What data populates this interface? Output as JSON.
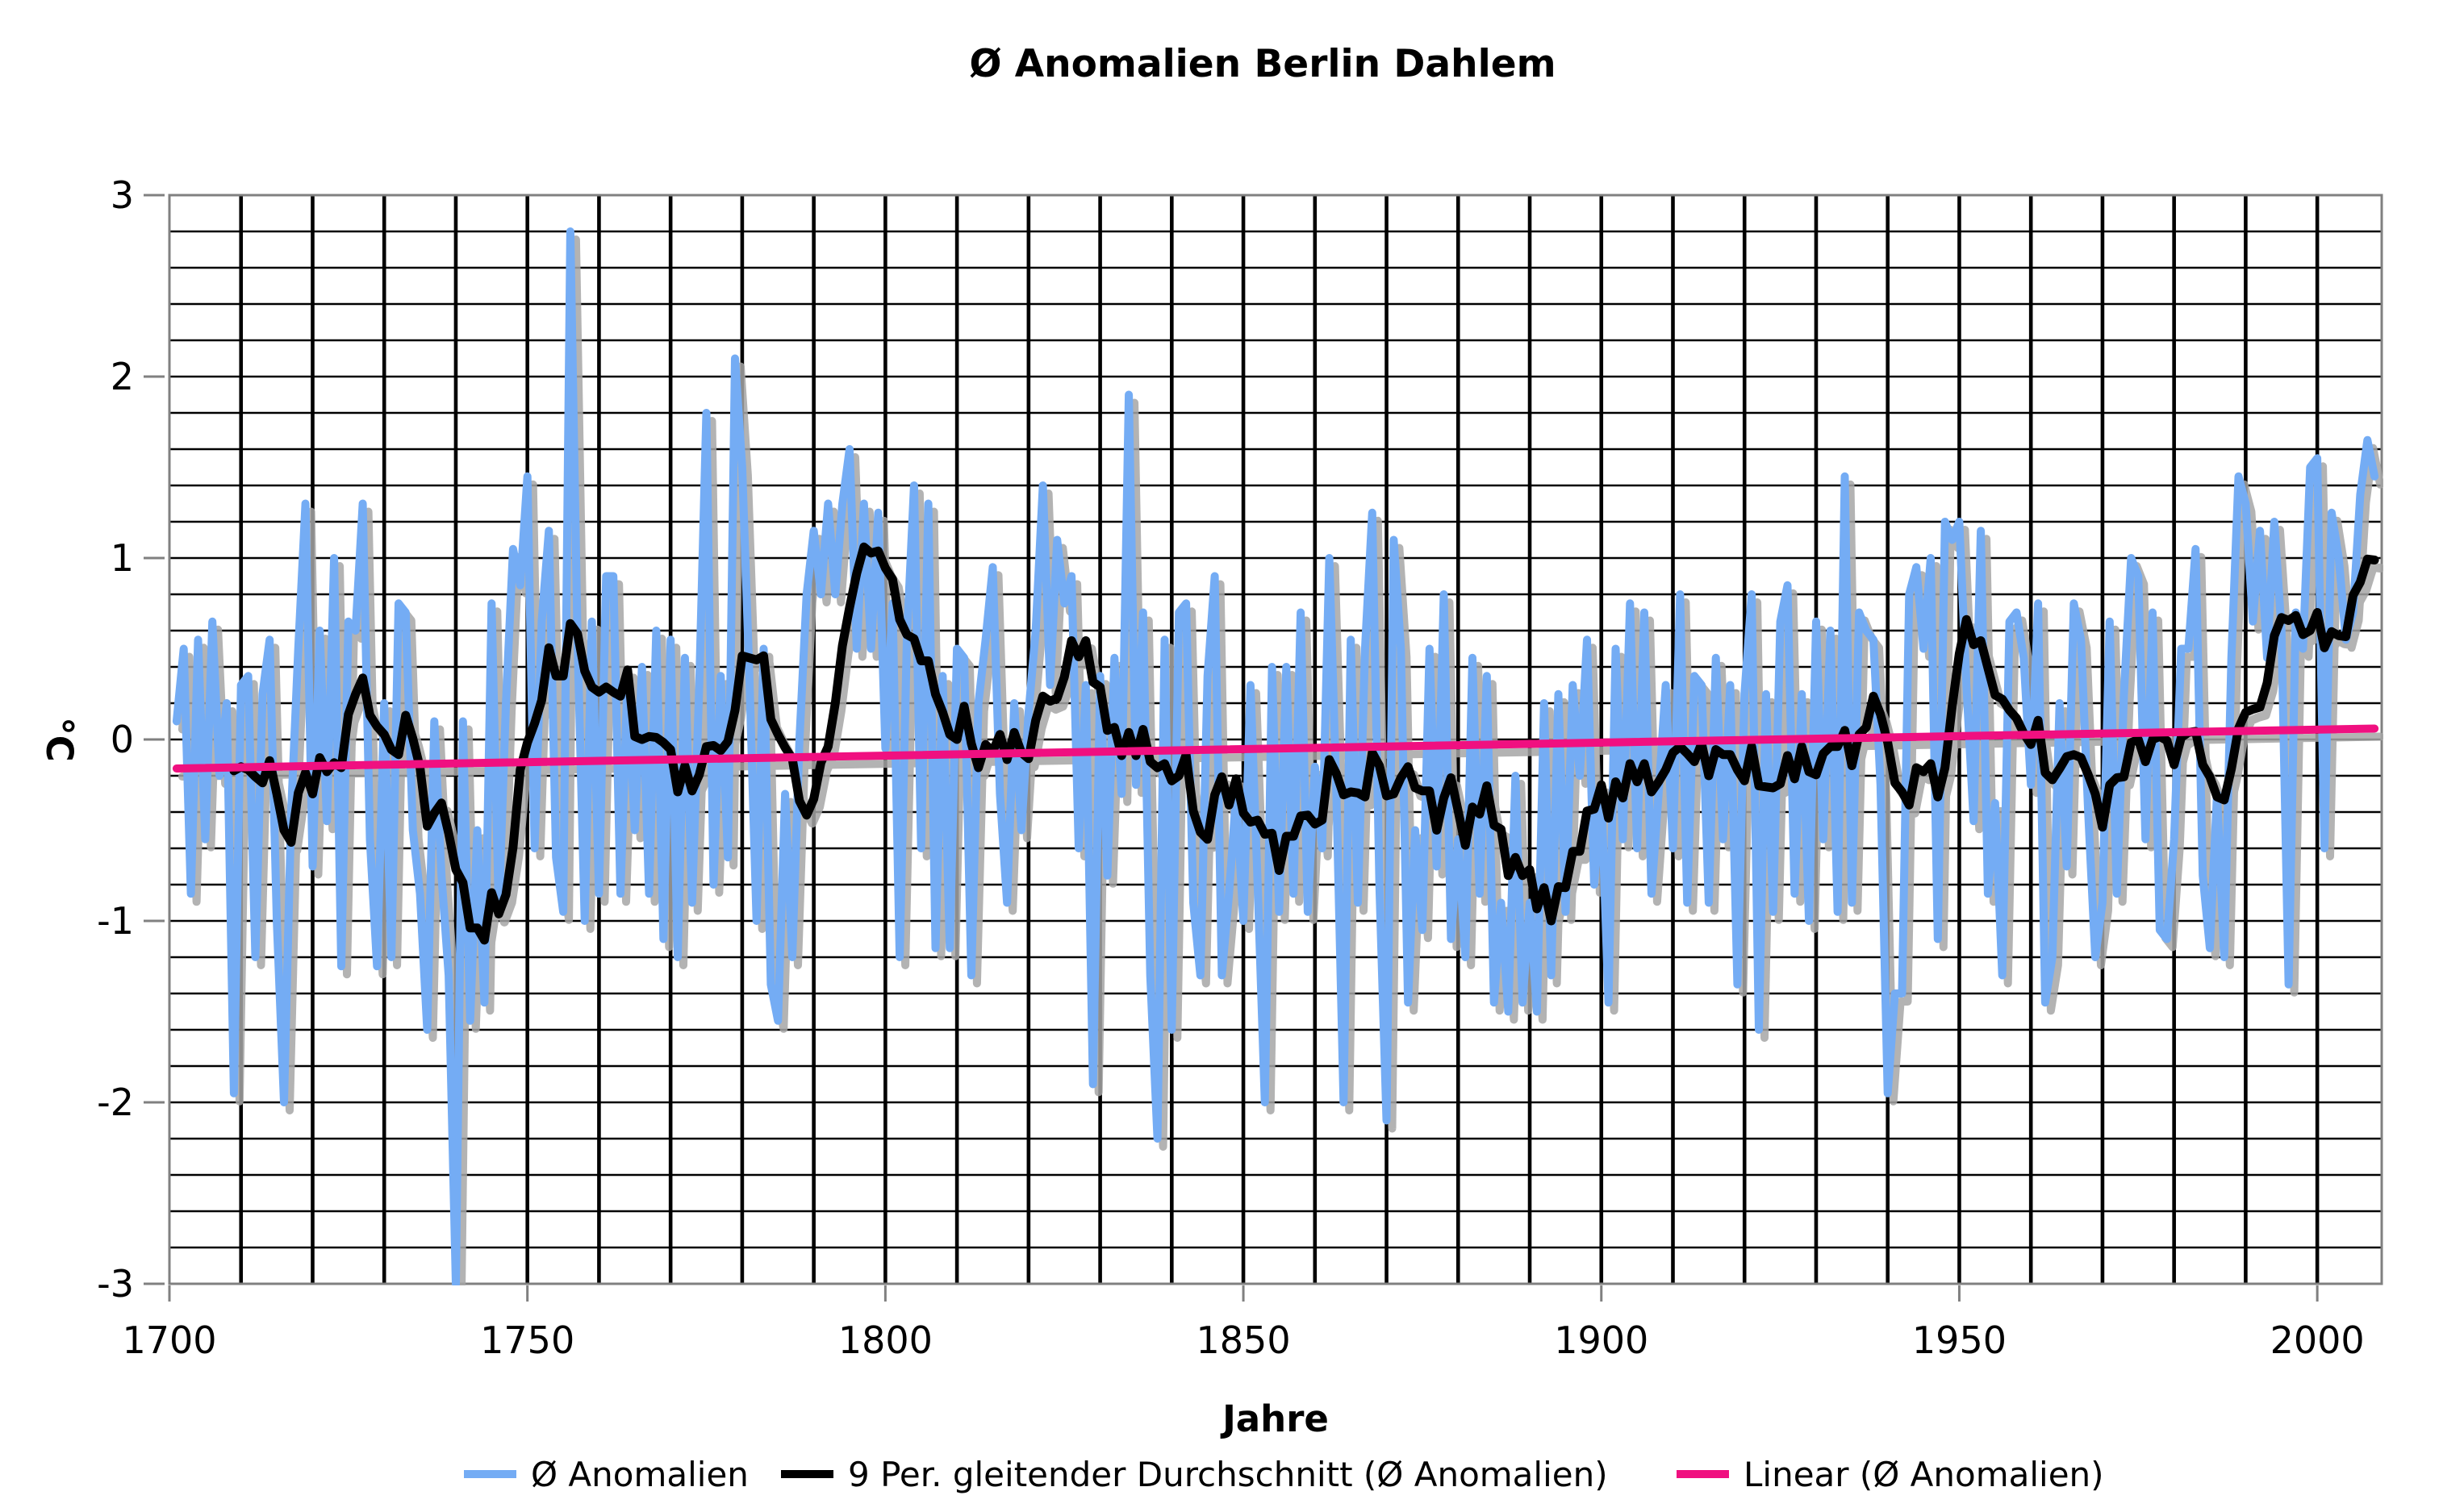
{
  "title": "Ø Anomalien Berlin Dahlem",
  "y_axis": {
    "title": "°C",
    "tick_labels": [
      "3",
      "2",
      "1",
      "0",
      "-1",
      "-2",
      "-3"
    ],
    "tick_values": [
      3,
      2,
      1,
      0,
      -1,
      -2,
      -3
    ],
    "min": -3,
    "max": 3,
    "minor_step": 0.2
  },
  "x_axis": {
    "title": "Jahre",
    "tick_labels": [
      "1700",
      "1750",
      "1800",
      "1850",
      "1900",
      "1950",
      "2000"
    ],
    "tick_values": [
      1700,
      1750,
      1800,
      1850,
      1900,
      1950,
      2000
    ],
    "minor_step": 10
  },
  "legend": [
    {
      "label": "Ø Anomalien",
      "color": "#74ACF4"
    },
    {
      "label": "9 Per. gleitender Durchschnitt (Ø Anomalien)",
      "color": "#000000"
    },
    {
      "label": "Linear (Ø Anomalien)",
      "color": "#F01080"
    }
  ],
  "chart_data": {
    "type": "line",
    "title": "Ø Anomalien Berlin Dahlem",
    "xlabel": "Jahre",
    "ylabel": "°C",
    "xlim": [
      1700,
      2009
    ],
    "ylim": [
      -3,
      3
    ],
    "grid": "both",
    "legend_position": "bottom",
    "start_year": 1701,
    "end_year": 2008,
    "series": [
      {
        "name": "Ø Anomalien",
        "color": "#74ACF4",
        "kind": "yearly_values",
        "values": [
          0.1,
          0.5,
          -0.85,
          0.55,
          -0.55,
          0.65,
          -0.2,
          0.2,
          -1.95,
          0.3,
          0.35,
          -1.2,
          0.25,
          0.55,
          -1.0,
          -2.0,
          -0.4,
          0.5,
          1.3,
          -0.7,
          0.6,
          -0.45,
          1.0,
          -1.25,
          0.65,
          0.6,
          1.3,
          -0.55,
          -1.25,
          0.2,
          -1.2,
          0.75,
          0.7,
          -0.5,
          -0.85,
          -1.6,
          0.1,
          -0.75,
          -1.3,
          -3.0,
          0.1,
          -1.55,
          -0.5,
          -1.45,
          0.75,
          -0.95,
          0.2,
          1.05,
          0.85,
          1.45,
          -0.6,
          0.65,
          1.15,
          -0.65,
          -0.95,
          2.8,
          0.55,
          -1.0,
          0.65,
          -0.85,
          0.9,
          0.9,
          -0.85,
          0.35,
          -0.5,
          0.4,
          -0.85,
          0.6,
          -1.1,
          0.55,
          -1.2,
          0.45,
          -0.9,
          0.3,
          1.8,
          -0.8,
          0.35,
          -0.65,
          2.1,
          1.5,
          0.35,
          -1.0,
          0.5,
          -1.35,
          -1.55,
          -0.3,
          -1.2,
          0.0,
          0.8,
          1.15,
          0.8,
          1.3,
          0.8,
          1.3,
          1.6,
          0.5,
          1.3,
          0.5,
          1.25,
          -0.05,
          0.75,
          -1.2,
          0.55,
          1.4,
          -0.6,
          1.3,
          -1.15,
          0.35,
          -1.15,
          0.5,
          0.45,
          -1.3,
          0.2,
          0.55,
          0.95,
          -0.3,
          -0.9,
          0.2,
          -0.5,
          0.15,
          0.6,
          1.4,
          0.3,
          1.1,
          0.75,
          0.9,
          -0.6,
          0.3,
          -1.9,
          0.35,
          -0.75,
          0.45,
          -0.3,
          1.9,
          -0.25,
          0.7,
          -1.3,
          -2.2,
          0.55,
          -1.6,
          0.7,
          0.75,
          -0.9,
          -1.3,
          0.35,
          0.9,
          -1.3,
          -0.85,
          -0.3,
          -1.0,
          0.3,
          -0.8,
          -2.0,
          0.4,
          -0.95,
          0.4,
          -0.85,
          0.7,
          -0.95,
          -0.15,
          -0.6,
          1.0,
          -0.3,
          -2.0,
          0.55,
          -0.9,
          0.5,
          1.25,
          -0.8,
          -2.1,
          1.1,
          0.5,
          -1.45,
          -0.5,
          -1.05,
          0.5,
          -0.7,
          0.8,
          -1.1,
          -0.55,
          -1.2,
          0.45,
          -0.85,
          0.35,
          -1.45,
          -0.9,
          -1.5,
          -0.2,
          -1.45,
          -0.9,
          -1.5,
          0.2,
          -1.3,
          0.25,
          -0.95,
          0.3,
          -0.2,
          0.55,
          -0.8,
          -0.3,
          -1.45,
          0.5,
          -0.55,
          0.75,
          -0.6,
          0.7,
          -0.85,
          -0.3,
          0.3,
          -0.6,
          0.8,
          -0.9,
          0.35,
          0.3,
          -0.9,
          0.45,
          -0.55,
          0.3,
          -1.35,
          0.25,
          0.8,
          -1.6,
          0.25,
          -0.95,
          0.65,
          0.85,
          -0.85,
          0.25,
          -1.0,
          0.65,
          -0.55,
          0.6,
          -0.95,
          1.45,
          -0.9,
          0.7,
          0.6,
          0.55,
          -0.25,
          -1.95,
          -1.4,
          -1.4,
          0.8,
          0.95,
          0.5,
          1.0,
          -1.1,
          1.2,
          1.1,
          1.2,
          0.3,
          -0.45,
          1.15,
          -0.85,
          -0.35,
          -1.3,
          0.65,
          0.7,
          0.45,
          -0.25,
          0.75,
          -1.45,
          -1.2,
          0.2,
          -0.7,
          0.75,
          0.55,
          -0.4,
          -1.2,
          -0.9,
          0.65,
          -0.85,
          0.25,
          1.0,
          0.9,
          -0.55,
          0.7,
          -1.05,
          -1.1,
          -0.55,
          0.5,
          0.5,
          1.05,
          -0.75,
          -1.15,
          -0.3,
          -1.2,
          0.45,
          1.45,
          1.3,
          0.65,
          1.15,
          0.45,
          1.2,
          0.6,
          -1.35,
          0.7,
          0.5,
          1.5,
          1.55,
          -0.6,
          1.25,
          1.0,
          0.55,
          0.7,
          1.35,
          1.65,
          1.45
        ]
      },
      {
        "name": "9 Per. gleitender Durchschnitt (Ø Anomalien)",
        "color": "#000000",
        "kind": "trailing_moving_average",
        "window": 9
      },
      {
        "name": "Linear (Ø Anomalien)",
        "color": "#F01080",
        "kind": "linear_trend",
        "start_value": -0.16,
        "end_value": 0.06
      }
    ]
  }
}
